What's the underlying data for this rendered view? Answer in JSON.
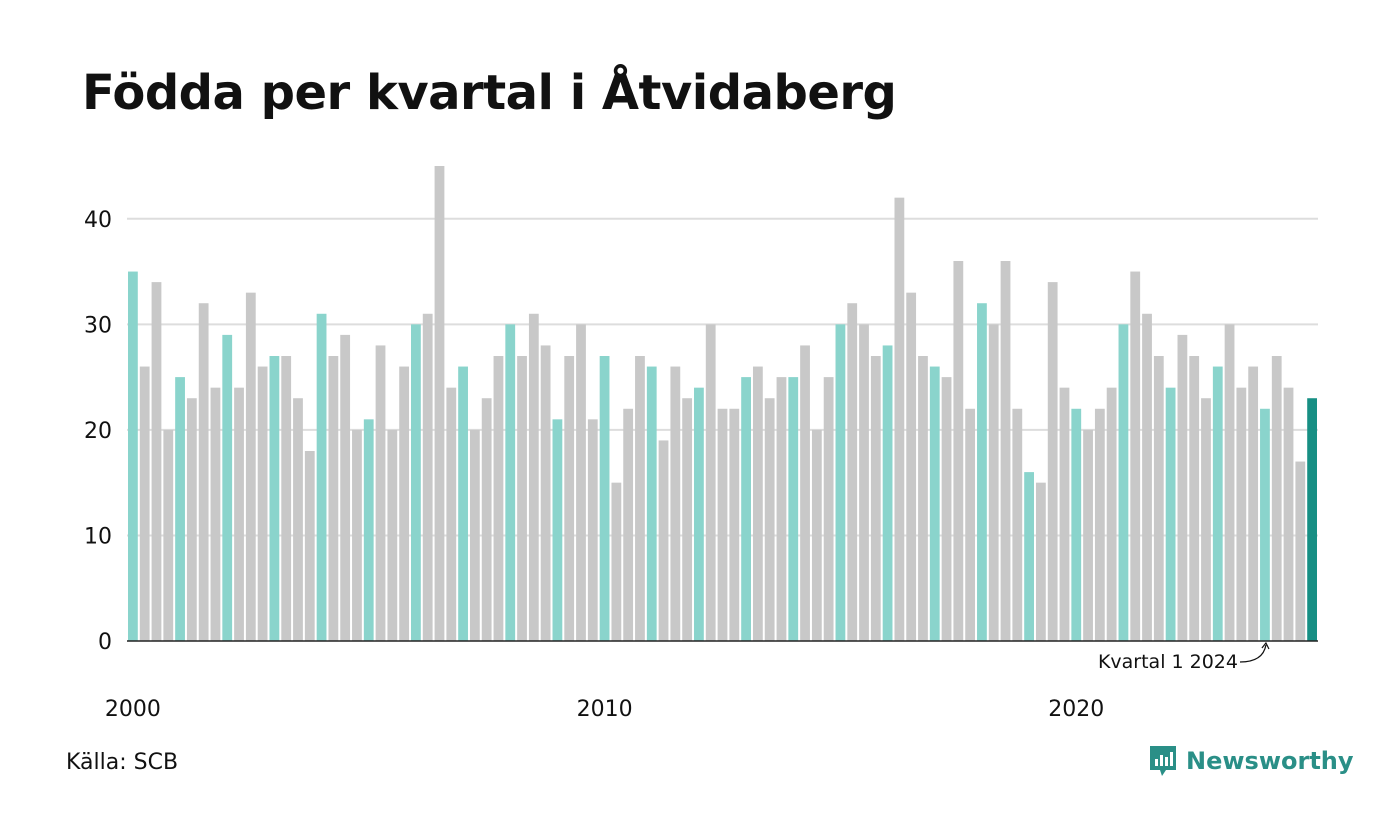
{
  "title": "Födda per kvartal i Åtvidaberg",
  "source": "Källa: SCB",
  "brand": "Newsworthy",
  "colors": {
    "q1": "#8ad4cc",
    "other": "#c8c8c8",
    "latest": "#178f84",
    "grid": "#dddddd",
    "axis": "#222222",
    "brand": "#2a8f87"
  },
  "chart_data": {
    "type": "bar",
    "title": "Födda per kvartal i Åtvidaberg",
    "start_year": 2000,
    "quarters_per_year": 4,
    "ylim": [
      0,
      45
    ],
    "yticks": [
      0,
      10,
      20,
      30,
      40
    ],
    "xticks": [
      {
        "label": "2000",
        "index": 0
      },
      {
        "label": "2010",
        "index": 40
      },
      {
        "label": "2020",
        "index": 80
      }
    ],
    "grid": true,
    "values": [
      35,
      26,
      34,
      20,
      25,
      23,
      32,
      24,
      29,
      24,
      33,
      26,
      27,
      27,
      23,
      18,
      31,
      27,
      29,
      20,
      21,
      28,
      20,
      26,
      30,
      31,
      45,
      24,
      26,
      20,
      23,
      27,
      30,
      27,
      31,
      28,
      21,
      27,
      30,
      21,
      27,
      15,
      22,
      27,
      26,
      19,
      26,
      23,
      24,
      30,
      22,
      22,
      25,
      26,
      23,
      25,
      25,
      28,
      20,
      25,
      30,
      32,
      30,
      27,
      28,
      42,
      33,
      27,
      26,
      25,
      36,
      22,
      32,
      30,
      36,
      22,
      16,
      15,
      34,
      24,
      22,
      20,
      22,
      24,
      30,
      35,
      31,
      27,
      24,
      29,
      27,
      23,
      26,
      30,
      24,
      26,
      22,
      27,
      24,
      17,
      23
    ],
    "annotation": "Kvartal 1 2024",
    "highlight": "Q1 bars colored teal; latest quarter darker teal"
  }
}
